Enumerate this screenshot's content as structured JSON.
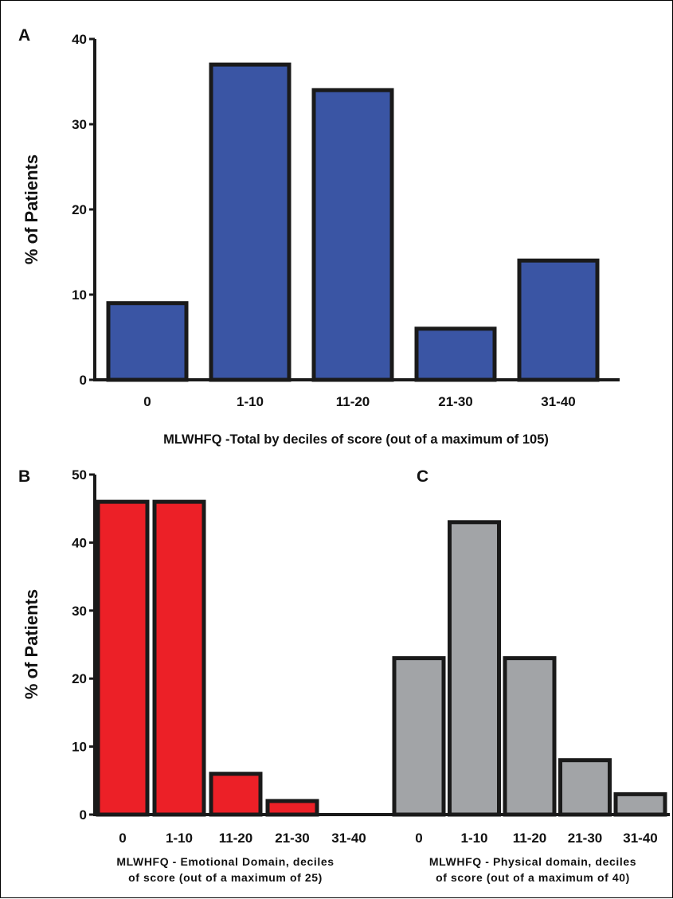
{
  "colors": {
    "panel_a_bar": "#3a55a4",
    "panel_b_bar": "#ec2027",
    "panel_c_bar": "#a2a4a7",
    "bar_outline": "#1a1a1a",
    "axis": "#1a1a1a"
  },
  "ylabel": "% of Patients",
  "chart_data": [
    {
      "panel": "A",
      "type": "bar",
      "categories": [
        "0",
        "1-10",
        "11-20",
        "21-30",
        "31-40"
      ],
      "values": [
        9,
        37,
        34,
        6,
        14
      ],
      "ylim": [
        0,
        40
      ],
      "yticks": [
        "0",
        "10",
        "20",
        "30",
        "40"
      ],
      "ylabel": "% of Patients",
      "xlabel": "MLWHFQ -Total by deciles of score (out of a maximum of 105)",
      "grid": false
    },
    {
      "panel": "B",
      "type": "bar",
      "categories": [
        "0",
        "1-10",
        "11-20",
        "21-30",
        "31-40"
      ],
      "values": [
        46,
        46,
        6,
        2,
        0
      ],
      "ylim": [
        0,
        50
      ],
      "yticks": [
        "0",
        "10",
        "20",
        "30",
        "40",
        "50"
      ],
      "ylabel": "% of Patients",
      "xlabel_lines": [
        "MLWHFQ - Emotional Domain, deciles",
        "of score (out of a maximum of 25)"
      ],
      "grid": false
    },
    {
      "panel": "C",
      "type": "bar",
      "categories": [
        "0",
        "1-10",
        "11-20",
        "21-30",
        "31-40"
      ],
      "values": [
        23,
        43,
        23,
        8,
        3
      ],
      "ylim": [
        0,
        50
      ],
      "xlabel_lines": [
        "MLWHFQ - Physical domain, deciles",
        "of score (out of a maximum of 40)"
      ],
      "grid": false
    }
  ]
}
